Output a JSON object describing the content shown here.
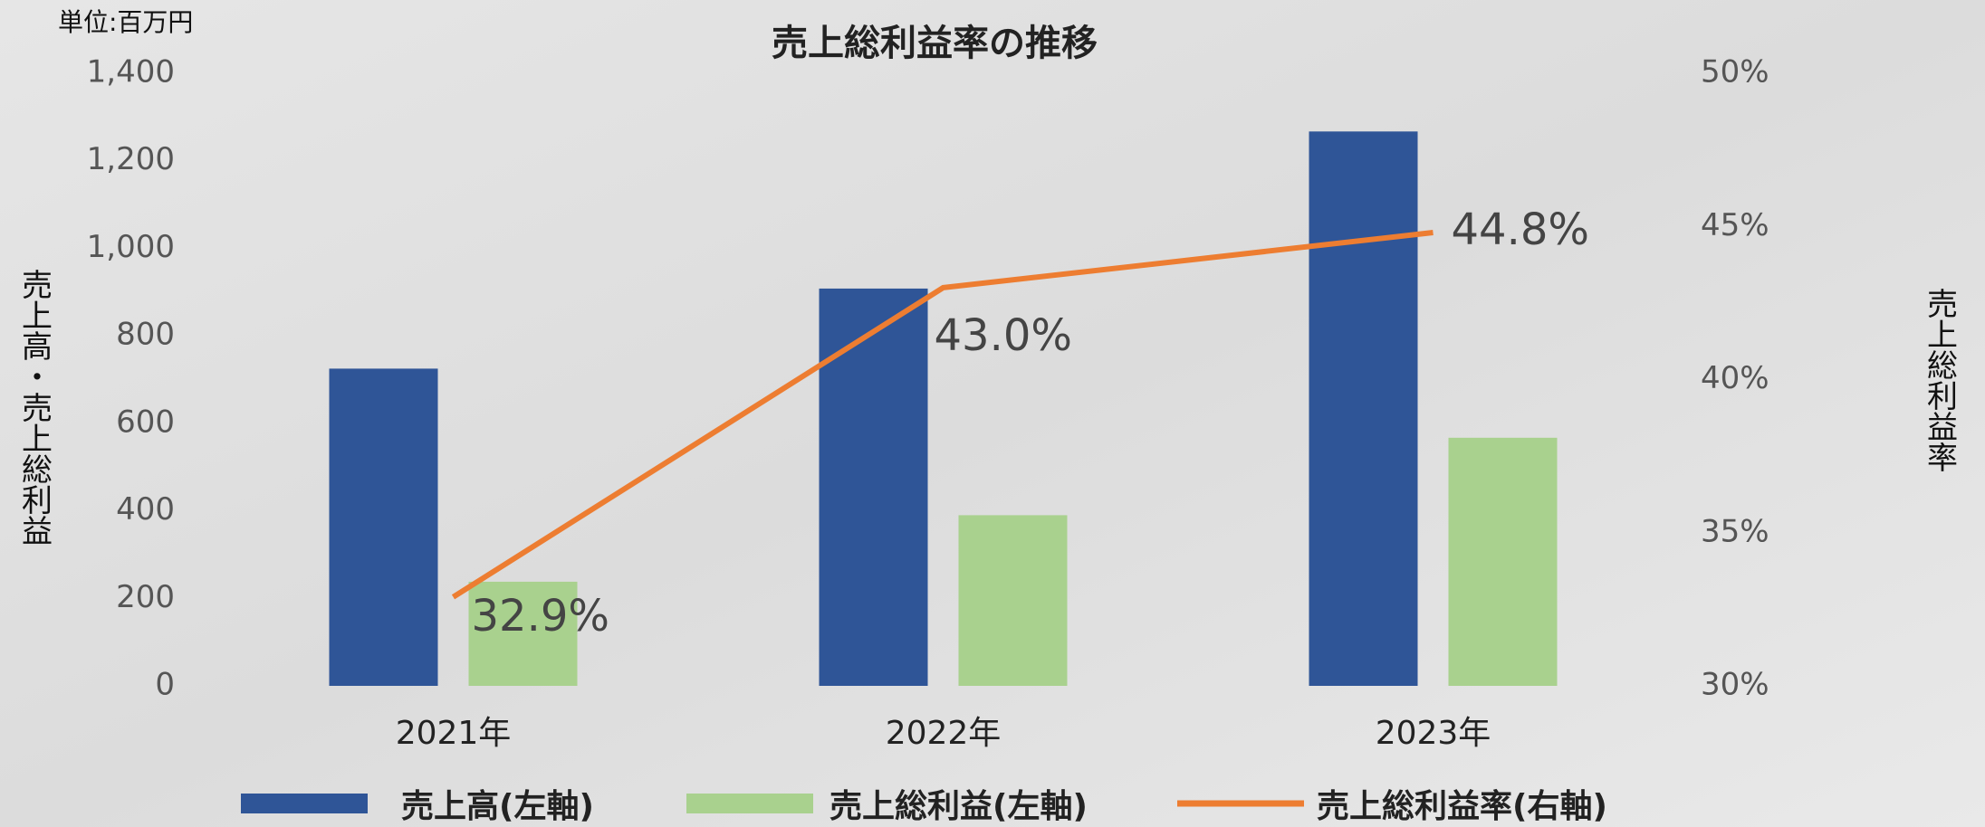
{
  "chart_data": {
    "type": "bar",
    "title": "売上総利益率の推移",
    "unit_label": "単位:百万円",
    "y_label": "売上高・売上総利益",
    "y2_label": "売上総利益率",
    "categories": [
      "2021年",
      "2022年",
      "2023年"
    ],
    "series": [
      {
        "name": "売上高(左軸)",
        "type": "bar",
        "color": "#2f5597",
        "values": [
          725,
          908,
          1267
        ]
      },
      {
        "name": "売上総利益(左軸)",
        "type": "bar",
        "color": "#a9d18e",
        "values": [
          238,
          390,
          567
        ]
      },
      {
        "name": "売上総利益率(右軸)",
        "type": "line",
        "axis": "y2",
        "color": "#ed7d31",
        "values": [
          32.9,
          43.0,
          44.8
        ],
        "value_labels": [
          "32.9%",
          "43.0%",
          "44.8%"
        ]
      }
    ],
    "ylim": [
      0,
      1400
    ],
    "yticks": [
      0,
      200,
      400,
      600,
      800,
      {
        "value": 1000,
        "label": "1,000"
      },
      {
        "value": 1200,
        "label": "1,200"
      },
      {
        "value": 1400,
        "label": "1,400"
      }
    ],
    "y2lim": [
      30,
      50
    ],
    "y2ticks": [
      {
        "value": 30,
        "label": "30%"
      },
      {
        "value": 35,
        "label": "35%"
      },
      {
        "value": 40,
        "label": "40%"
      },
      {
        "value": 45,
        "label": "45%"
      },
      {
        "value": 50,
        "label": "50%"
      }
    ],
    "grid": false
  }
}
